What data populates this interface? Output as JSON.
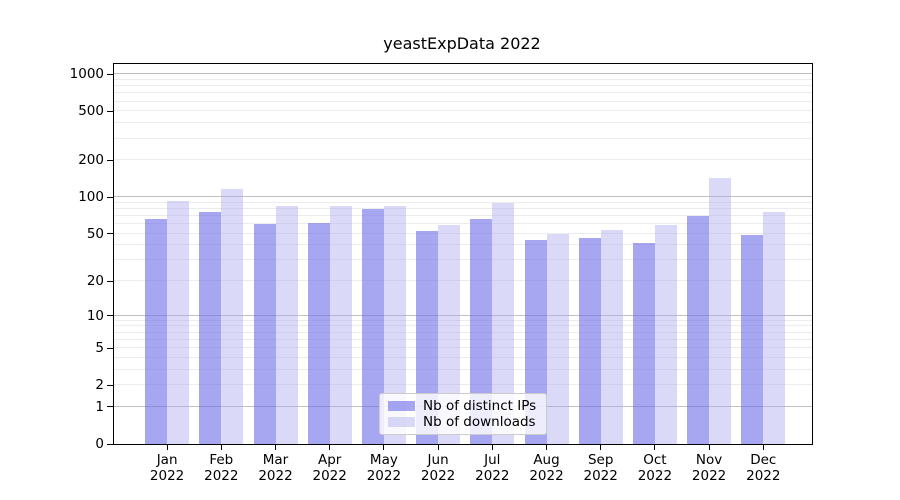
{
  "figure": {
    "title": "yeastExpData 2022",
    "background_color": "#ffffff"
  },
  "chart_data": {
    "type": "bar",
    "title": "yeastExpData 2022",
    "categories": [
      "Jan",
      "Feb",
      "Mar",
      "Apr",
      "May",
      "Jun",
      "Jul",
      "Aug",
      "Sep",
      "Oct",
      "Nov",
      "Dec"
    ],
    "year": "2022",
    "series": [
      {
        "name": "Nb of distinct IPs",
        "color": "#a6a6f1",
        "fill_rgba": "rgba(112,112,232,0.62)",
        "values": [
          66,
          76,
          60,
          61,
          80,
          53,
          66,
          44,
          46,
          42,
          70,
          49
        ]
      },
      {
        "name": "Nb of downloads",
        "color": "#dadaf8",
        "fill_rgba": "rgba(173,173,239,0.45)",
        "values": [
          92,
          116,
          85,
          84,
          85,
          59,
          89,
          50,
          54,
          59,
          142,
          75
        ]
      }
    ],
    "xlabel": "",
    "ylabel": "",
    "yscale": "log1p",
    "ylim": [
      0,
      1212
    ],
    "yticks": [
      0,
      1,
      2,
      5,
      10,
      20,
      50,
      100,
      200,
      500,
      1000
    ],
    "grid": {
      "orientation": "horizontal",
      "major_ticks": [
        1,
        10,
        100,
        1000
      ],
      "major_color": "#c0c0c0",
      "minor_color": "#ececec"
    },
    "legend": {
      "position": "lower-center",
      "entries": [
        "Nb of distinct IPs",
        "Nb of downloads"
      ]
    }
  }
}
